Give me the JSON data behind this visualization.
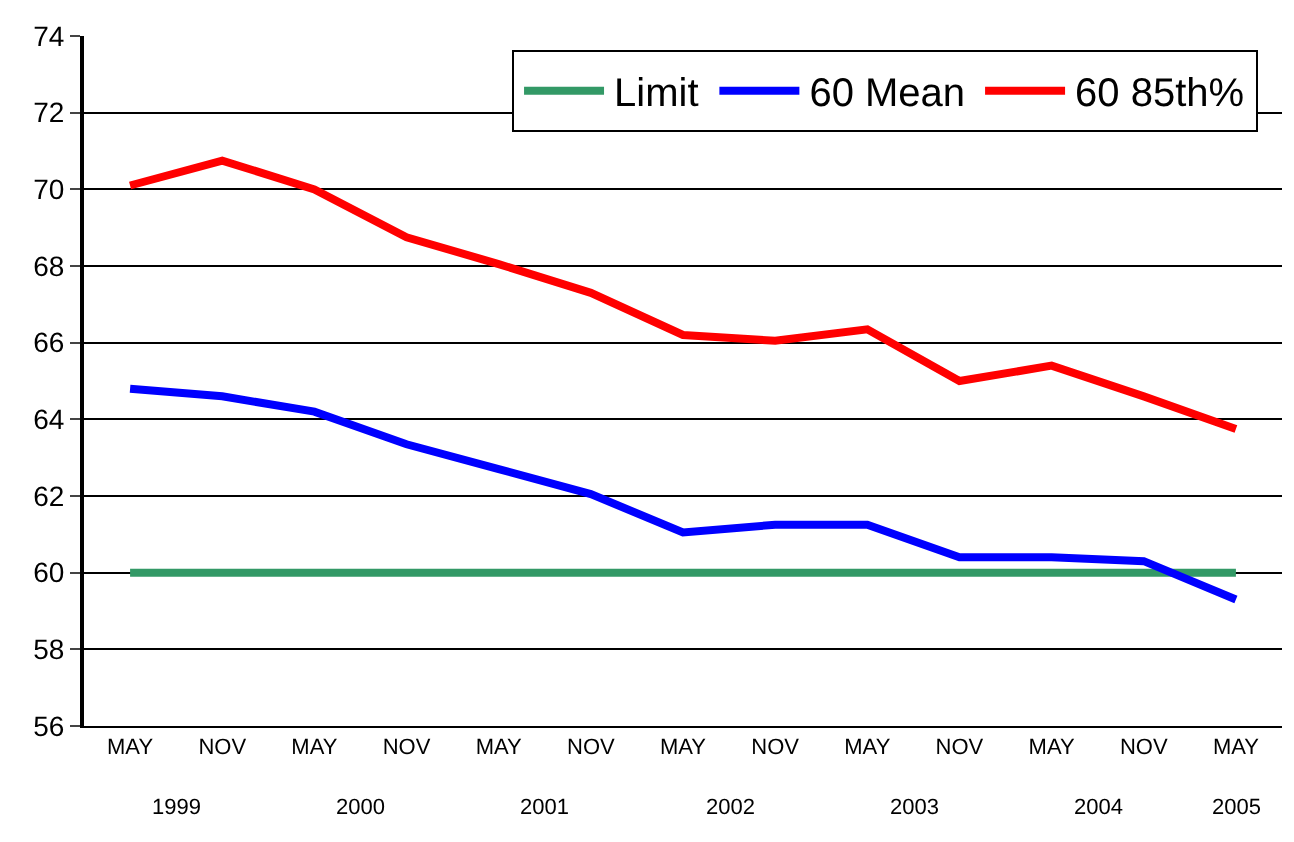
{
  "chart_data": {
    "type": "line",
    "categories": [
      "MAY",
      "NOV",
      "MAY",
      "NOV",
      "MAY",
      "NOV",
      "MAY",
      "NOV",
      "MAY",
      "NOV",
      "MAY",
      "NOV",
      "MAY"
    ],
    "series": [
      {
        "name": "Limit",
        "color": "#339966",
        "values": [
          60,
          60,
          60,
          60,
          60,
          60,
          60,
          60,
          60,
          60,
          60,
          60,
          60
        ]
      },
      {
        "name": "60 Mean",
        "color": "#0000ff",
        "values": [
          64.8,
          64.6,
          64.2,
          63.35,
          62.7,
          62.05,
          61.05,
          61.25,
          61.25,
          60.4,
          60.4,
          60.3,
          59.3
        ]
      },
      {
        "name": "60 85th%",
        "color": "#ff0000",
        "values": [
          70.1,
          70.75,
          70.0,
          68.75,
          68.05,
          67.3,
          66.2,
          66.05,
          66.35,
          65.0,
          65.4,
          64.6,
          63.75
        ]
      }
    ],
    "ylim": [
      56,
      74
    ],
    "yticks": [
      56,
      58,
      60,
      62,
      64,
      66,
      68,
      70,
      72,
      74
    ],
    "grid": "y",
    "legend": "top right",
    "marker": "none",
    "line_style": "solid",
    "annotations": [
      "1999",
      "2000",
      "2001",
      "2002",
      "2003",
      "2004",
      "2005"
    ]
  }
}
